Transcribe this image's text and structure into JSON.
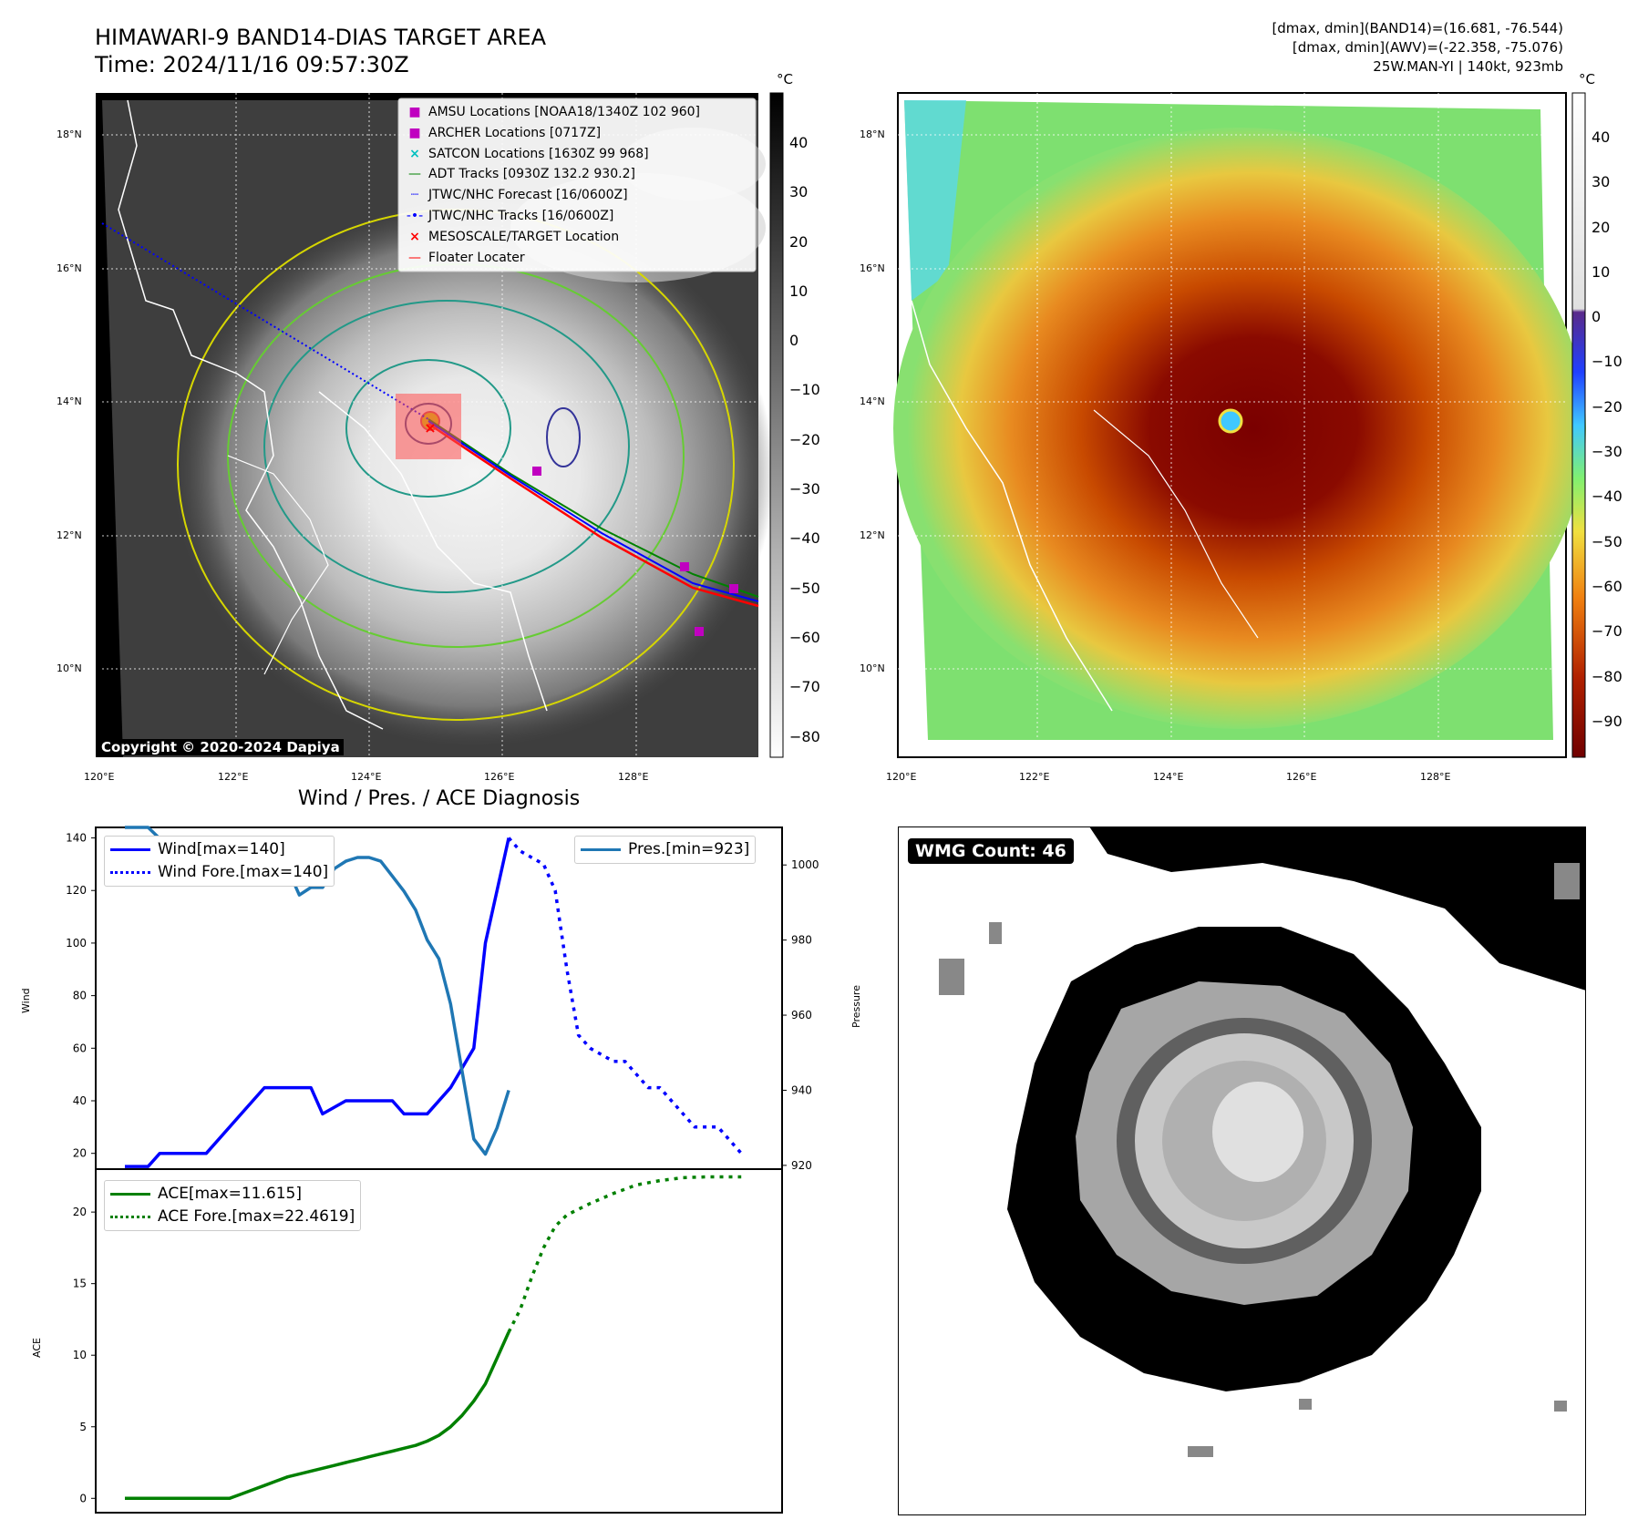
{
  "header": {
    "title_line1": "HIMAWARI-9 BAND14-DIAS TARGET AREA",
    "title_line2": "Time: 2024/11/16 09:57:30Z",
    "info_line1": "[dmax, dmin](BAND14)=(16.681, -76.544)",
    "info_line2": "[dmax, dmin](AWV)=(-22.358, -75.076)",
    "info_line3": "25W.MAN-YI | 140kt, 923mb"
  },
  "map_left": {
    "lat_labels": [
      "18°N",
      "16°N",
      "14°N",
      "12°N",
      "10°N"
    ],
    "lon_labels": [
      "120°E",
      "122°E",
      "124°E",
      "126°E",
      "128°E"
    ],
    "copyright": "Copyright © 2020-2024 Dapiya",
    "legend": [
      {
        "label": "AMSU Locations [NOAA18/1340Z 102 960]",
        "symbol": "square",
        "color": "#c000c0"
      },
      {
        "label": "ARCHER Locations [0717Z]",
        "symbol": "square",
        "color": "#c000c0"
      },
      {
        "label": "SATCON Locations [1630Z 99 968]",
        "symbol": "x",
        "color": "#00c0c0"
      },
      {
        "label": "ADT Tracks [0930Z 132.2 930.2]",
        "symbol": "line",
        "color": "#008000"
      },
      {
        "label": "JTWC/NHC Forecast [16/0600Z]",
        "symbol": "dotted",
        "color": "#0000ff"
      },
      {
        "label": "JTWC/NHC Tracks [16/0600Z]",
        "symbol": "line-dot",
        "color": "#0000ff"
      },
      {
        "label": "MESOSCALE/TARGET Location",
        "symbol": "x",
        "color": "#ff0000"
      },
      {
        "label": "Floater Locater",
        "symbol": "line",
        "color": "#ff0000"
      }
    ],
    "colorbar": {
      "unit": "°C",
      "ticks": [
        "40",
        "30",
        "20",
        "10",
        "0",
        "−10",
        "−20",
        "−30",
        "−40",
        "−50",
        "−60",
        "−70",
        "−80"
      ]
    }
  },
  "map_right": {
    "lat_labels": [
      "18°N",
      "16°N",
      "14°N",
      "12°N",
      "10°N"
    ],
    "lon_labels": [
      "120°E",
      "122°E",
      "124°E",
      "126°E",
      "128°E"
    ],
    "colorbar": {
      "unit": "°C",
      "ticks": [
        "40",
        "30",
        "20",
        "10",
        "0",
        "−10",
        "−20",
        "−30",
        "−40",
        "−50",
        "−60",
        "−70",
        "−80",
        "−90"
      ]
    }
  },
  "wmg_panel": {
    "label": "WMG Count: 46"
  },
  "chart_data": [
    {
      "type": "line",
      "title": "Wind / Pres. / ACE Diagnosis",
      "xlabel": "",
      "ylabel": "Wind",
      "ylabel_right": "Pressure",
      "ylim": [
        14,
        144
      ],
      "ylim_right": [
        919,
        1010
      ],
      "yticks": [
        20,
        40,
        60,
        80,
        100,
        120,
        140
      ],
      "yticks_right": [
        920,
        940,
        960,
        980,
        1000
      ],
      "x_range": [
        0,
        54
      ],
      "series": [
        {
          "name": "Wind[max=140]",
          "color": "#0000ff",
          "style": "solid",
          "axis": "left",
          "x": [
            0,
            2,
            3,
            7,
            10,
            12,
            14,
            16,
            17,
            19,
            21,
            23,
            24,
            26,
            28,
            30,
            31,
            33
          ],
          "values": [
            15,
            15,
            20,
            20,
            35,
            45,
            45,
            45,
            35,
            40,
            40,
            40,
            35,
            35,
            45,
            60,
            100,
            140
          ]
        },
        {
          "name": "Wind Fore.[max=140]",
          "color": "#0000ff",
          "style": "dotted",
          "axis": "left",
          "x": [
            33,
            34,
            36,
            37,
            38,
            39,
            40,
            42,
            43,
            45,
            46,
            48,
            49,
            51,
            52,
            53
          ],
          "values": [
            140,
            135,
            130,
            120,
            90,
            65,
            60,
            55,
            55,
            45,
            45,
            35,
            30,
            30,
            25,
            20
          ]
        },
        {
          "name": "Pres.[min=923]",
          "color": "#1f77b4",
          "style": "solid",
          "axis": "right",
          "x": [
            0,
            2,
            3,
            4,
            6,
            7,
            8,
            9,
            10,
            11,
            12,
            13,
            14,
            15,
            16,
            17,
            18,
            19,
            20,
            21,
            22,
            23,
            24,
            25,
            26,
            27,
            28,
            29,
            30,
            31,
            32,
            33
          ],
          "values": [
            1010,
            1010,
            1007,
            1007,
            1004,
            1004,
            1001,
            996,
            997,
            999,
            1001,
            998,
            999,
            992,
            994,
            994,
            999,
            1001,
            1002,
            1002,
            1001,
            997,
            993,
            988,
            980,
            975,
            963,
            945,
            927,
            923,
            930,
            940
          ]
        },
        {
          "name": "ACE[max=11.615]",
          "color": "#008000",
          "style": "solid",
          "axis": "ace",
          "x": [
            0,
            2,
            4,
            6,
            8,
            9,
            10,
            11,
            12,
            13,
            14,
            15,
            16,
            17,
            18,
            19,
            20,
            21,
            22,
            23,
            24,
            25,
            26,
            27,
            28,
            29,
            30,
            31,
            32,
            33
          ],
          "values": [
            0,
            0,
            0,
            0,
            0,
            0,
            0.3,
            0.6,
            0.9,
            1.2,
            1.5,
            1.7,
            1.9,
            2.1,
            2.3,
            2.5,
            2.7,
            2.9,
            3.1,
            3.3,
            3.5,
            3.7,
            4.0,
            4.4,
            5.0,
            5.8,
            6.8,
            8.0,
            9.8,
            11.615
          ]
        },
        {
          "name": "ACE Fore.[max=22.4619]",
          "color": "#008000",
          "style": "dotted",
          "axis": "ace",
          "x": [
            33,
            34,
            35,
            36,
            37,
            38,
            40,
            42,
            44,
            46,
            48,
            50,
            52,
            53
          ],
          "values": [
            11.615,
            13.2,
            15.5,
            17.5,
            19.0,
            19.8,
            20.6,
            21.3,
            21.9,
            22.2,
            22.4,
            22.46,
            22.46,
            22.46
          ]
        }
      ],
      "ace_ylabel": "ACE",
      "ace_ylim": [
        -1,
        23
      ],
      "ace_yticks": [
        0,
        5,
        10,
        15,
        20
      ]
    }
  ]
}
